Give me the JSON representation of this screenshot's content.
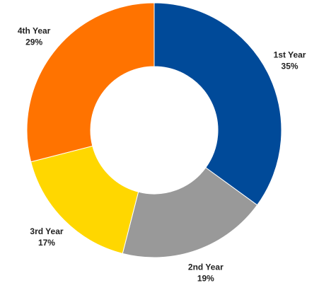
{
  "chart_data": {
    "type": "pie",
    "categories": [
      "1st Year",
      "2nd Year",
      "3rd Year",
      "4th Year"
    ],
    "values": [
      35,
      19,
      17,
      29
    ],
    "value_labels": [
      "35%",
      "19%",
      "17%",
      "29%"
    ],
    "colors": [
      "#004a99",
      "#999999",
      "#ffd700",
      "#ff7300"
    ]
  }
}
